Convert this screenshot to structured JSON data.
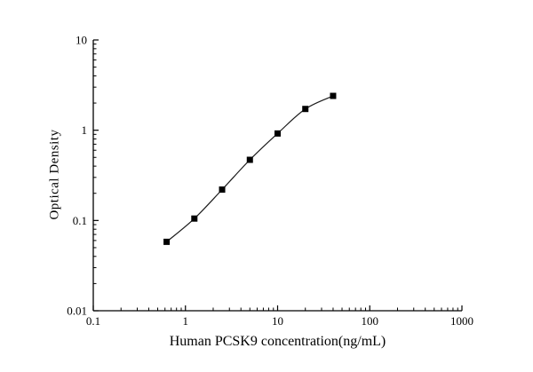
{
  "chart_data": {
    "type": "line",
    "series_name": "standard-curve",
    "x": [
      0.625,
      1.25,
      2.5,
      5,
      10,
      20,
      40
    ],
    "y": [
      0.058,
      0.105,
      0.22,
      0.47,
      0.92,
      1.72,
      2.4
    ],
    "title": "",
    "xlabel": "Human PCSK9 concentration(ng/mL)",
    "ylabel": "Optical Density",
    "xscale": "log",
    "yscale": "log",
    "xlim": [
      0.1,
      1000
    ],
    "ylim": [
      0.01,
      10
    ],
    "x_ticks": [
      0.1,
      1,
      10,
      100,
      1000
    ],
    "x_tick_labels": [
      "0.1",
      "1",
      "10",
      "100",
      "1000"
    ],
    "y_ticks": [
      0.01,
      0.1,
      1,
      10
    ],
    "y_tick_labels": [
      "0.01",
      "0.1",
      "1",
      "10"
    ],
    "grid": false,
    "legend": false,
    "marker": "filled-square",
    "marker_color": "#000000",
    "line_color": "#1a1a1a",
    "axis_color": "#000000"
  }
}
